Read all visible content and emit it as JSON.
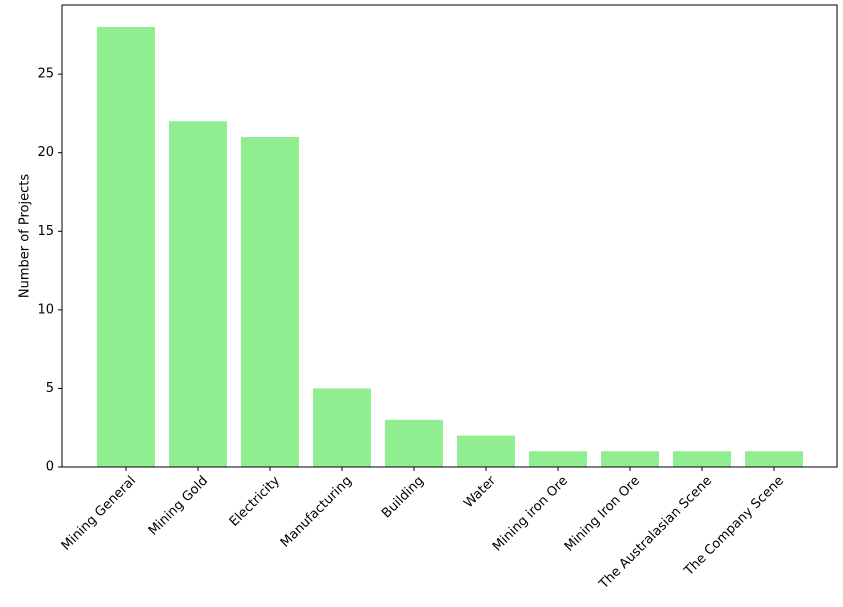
{
  "chart_data": {
    "type": "bar",
    "y_label": "Number of Projects",
    "categories": [
      "Mining General",
      "Mining Gold",
      "Electricity",
      "Manufacturing",
      "Building",
      "Water",
      "Mining iron Ore",
      "Mining Iron Ore",
      "The Australasian Scene",
      "The Company Scene"
    ],
    "values": [
      28,
      22,
      21,
      5,
      3,
      2,
      1,
      1,
      1,
      1
    ],
    "color": "#90ee90",
    "ylim": [
      0,
      29.4
    ],
    "yticks": [
      0,
      5,
      10,
      15,
      20,
      25
    ],
    "grid": false
  }
}
